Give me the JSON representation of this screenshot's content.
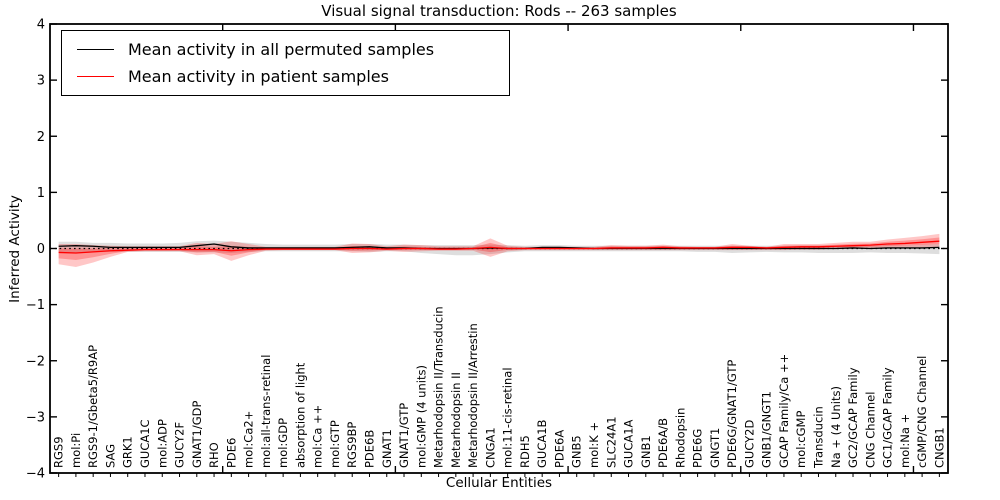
{
  "chart_data": {
    "type": "line",
    "title": "Visual signal transduction: Rods -- 263 samples",
    "xlabel": "Cellular Entities",
    "ylabel": "Inferred Activity",
    "ylim": [
      -4,
      4
    ],
    "grid": false,
    "legend_position": "upper left",
    "zero_line": true,
    "yticks": {
      "values": [
        4,
        3,
        2,
        1,
        0,
        -1,
        -2,
        -3,
        -4
      ],
      "labels": [
        "4",
        "3",
        "2",
        "1",
        "0",
        "−1",
        "−2",
        "−3",
        "−4"
      ]
    },
    "x_major_ticks": [
      10,
      20,
      30,
      40,
      50
    ],
    "categories": [
      "RGS9",
      "mol:Pi",
      "RGS9-1/Gbeta5/R9AP",
      "SAG",
      "GRK1",
      "GUCA1C",
      "mol:ADP",
      "GUCY2F",
      "GNAT1/GDP",
      "RHO",
      "PDE6",
      "mol:Ca2+",
      "mol:all-trans-retinal",
      "mol:GDP",
      "absorption of light",
      "mol:Ca ++",
      "mol:GTP",
      "RGS9BP",
      "PDE6B",
      "GNAT1",
      "GNAT1/GTP",
      "mol:GMP (4 units)",
      "Metarhodopsin II/Transducin",
      "Metarhodopsin II",
      "Metarhodopsin II/Arrestin",
      "CNGA1",
      "mol:11-cis-retinal",
      "RDH5",
      "GUCA1B",
      "PDE6A",
      "GNB5",
      "mol:K +",
      "SLC24A1",
      "GUCA1A",
      "GNB1",
      "PDE6A/B",
      "Rhodopsin",
      "PDE6G",
      "GNGT1",
      "PDE6G/GNAT1/GTP",
      "GUCY2D",
      "GNB1/GNGT1",
      "GCAP Family/Ca ++",
      "mol:cGMP",
      "Transducin",
      "Na + (4 Units)",
      "GC2/GCAP Family",
      "CNG Channel",
      "GC1/GCAP Family",
      "mol:Na +",
      "cGMP/CNG Channel",
      "CNGB1"
    ],
    "series": [
      {
        "name": "Mean activity in all permuted samples",
        "color": "#000000",
        "band_color": "#999999",
        "band_opacity": 0.32,
        "values": [
          0.04,
          0.05,
          0.04,
          0.02,
          0.02,
          0.02,
          0.02,
          0.02,
          0.05,
          0.08,
          0.03,
          0.01,
          0.01,
          0.01,
          0.01,
          0.01,
          0.01,
          0.02,
          0.03,
          0.01,
          0.01,
          0.0,
          0.0,
          0.0,
          0.0,
          0.01,
          0.0,
          0.0,
          0.02,
          0.02,
          0.01,
          0.0,
          0.0,
          0.0,
          0.0,
          0.0,
          0.0,
          0.0,
          0.0,
          0.0,
          0.0,
          0.0,
          0.0,
          0.0,
          0.0,
          0.0,
          0.01,
          0.0,
          0.01,
          0.01,
          0.01,
          0.02
        ],
        "band_high": [
          0.12,
          0.12,
          0.1,
          0.1,
          0.09,
          0.09,
          0.09,
          0.1,
          0.13,
          0.14,
          0.12,
          0.1,
          0.08,
          0.07,
          0.07,
          0.07,
          0.07,
          0.08,
          0.08,
          0.07,
          0.07,
          0.06,
          0.06,
          0.06,
          0.06,
          0.07,
          0.06,
          0.05,
          0.06,
          0.06,
          0.05,
          0.05,
          0.05,
          0.05,
          0.05,
          0.05,
          0.05,
          0.05,
          0.05,
          0.05,
          0.05,
          0.05,
          0.05,
          0.05,
          0.05,
          0.05,
          0.06,
          0.05,
          0.06,
          0.06,
          0.07,
          0.08
        ],
        "band_low": [
          -0.06,
          -0.08,
          -0.07,
          -0.06,
          -0.06,
          -0.06,
          -0.06,
          -0.06,
          -0.07,
          -0.07,
          -0.08,
          -0.06,
          -0.05,
          -0.05,
          -0.05,
          -0.05,
          -0.05,
          -0.05,
          -0.06,
          -0.05,
          -0.05,
          -0.08,
          -0.1,
          -0.12,
          -0.12,
          -0.1,
          -0.07,
          -0.05,
          -0.05,
          -0.05,
          -0.05,
          -0.05,
          -0.05,
          -0.05,
          -0.05,
          -0.05,
          -0.05,
          -0.06,
          -0.06,
          -0.08,
          -0.07,
          -0.06,
          -0.07,
          -0.07,
          -0.08,
          -0.08,
          -0.08,
          -0.07,
          -0.08,
          -0.08,
          -0.09,
          -0.1
        ]
      },
      {
        "name": "Mean activity in patient samples",
        "color": "#ff0000",
        "band_color": "#ff0000",
        "band_opacity": 0.22,
        "values": [
          -0.07,
          -0.08,
          -0.06,
          -0.04,
          -0.03,
          -0.02,
          -0.02,
          -0.02,
          -0.02,
          -0.02,
          -0.04,
          -0.02,
          -0.01,
          -0.01,
          -0.01,
          -0.01,
          -0.01,
          0.0,
          0.0,
          -0.01,
          0.0,
          0.0,
          -0.01,
          -0.01,
          0.0,
          0.02,
          0.0,
          0.0,
          0.0,
          0.0,
          0.0,
          0.0,
          0.01,
          0.01,
          0.01,
          0.02,
          0.01,
          0.01,
          0.01,
          0.02,
          0.02,
          0.01,
          0.02,
          0.03,
          0.03,
          0.04,
          0.05,
          0.06,
          0.08,
          0.09,
          0.11,
          0.13
        ],
        "band_high": [
          0.08,
          0.08,
          0.06,
          0.05,
          0.04,
          0.04,
          0.04,
          0.04,
          0.1,
          0.08,
          0.13,
          0.08,
          0.03,
          0.03,
          0.03,
          0.03,
          0.03,
          0.09,
          0.08,
          0.04,
          0.07,
          0.06,
          0.04,
          0.04,
          0.04,
          0.18,
          0.05,
          0.03,
          0.03,
          0.03,
          0.03,
          0.03,
          0.06,
          0.05,
          0.05,
          0.07,
          0.04,
          0.03,
          0.03,
          0.08,
          0.05,
          0.03,
          0.08,
          0.08,
          0.08,
          0.1,
          0.12,
          0.12,
          0.16,
          0.19,
          0.22,
          0.26
        ],
        "band_low": [
          -0.28,
          -0.33,
          -0.25,
          -0.15,
          -0.06,
          -0.05,
          -0.05,
          -0.05,
          -0.12,
          -0.1,
          -0.22,
          -0.12,
          -0.04,
          -0.03,
          -0.03,
          -0.03,
          -0.03,
          -0.08,
          -0.07,
          -0.04,
          -0.06,
          -0.05,
          -0.04,
          -0.04,
          -0.04,
          -0.15,
          -0.05,
          -0.03,
          -0.03,
          -0.03,
          -0.03,
          -0.03,
          -0.03,
          -0.03,
          -0.03,
          -0.03,
          -0.03,
          -0.03,
          -0.03,
          -0.03,
          -0.03,
          -0.03,
          -0.03,
          -0.02,
          -0.02,
          0.0,
          0.0,
          0.0,
          0.01,
          0.02,
          0.02,
          0.03
        ]
      }
    ],
    "colors": {
      "axis": "#000000",
      "background": "#ffffff",
      "zero_line": "#000000"
    }
  }
}
